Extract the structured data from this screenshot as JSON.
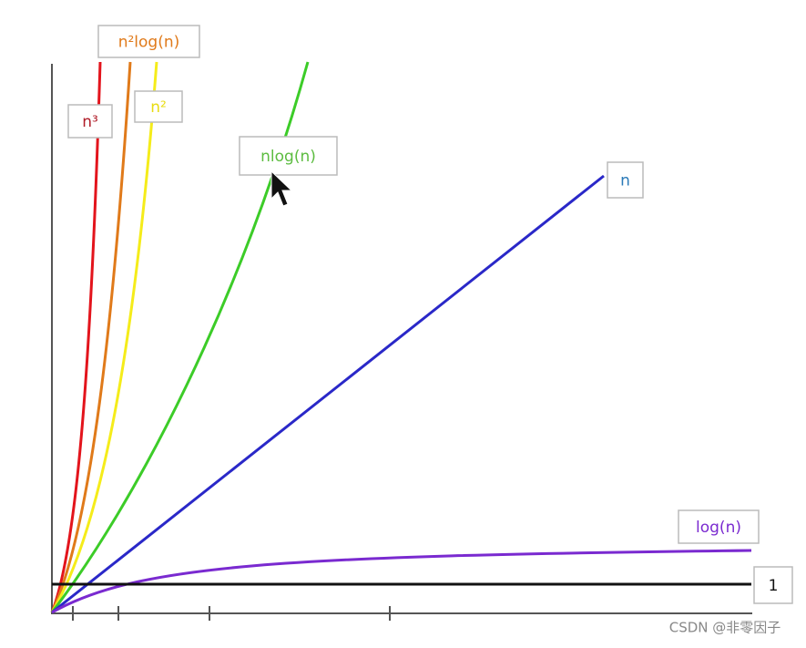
{
  "curves": [
    {
      "label": "n³",
      "color": "#e3141c",
      "label_color": "#b01c28"
    },
    {
      "label": "n²log(n)",
      "color": "#e07a1a",
      "label_color": "#e07a1a"
    },
    {
      "label": "n²",
      "color": "#f5ec1a",
      "label_color": "#e8dc10"
    },
    {
      "label": "nlog(n)",
      "color": "#3ccc28",
      "label_color": "#5cbc40"
    },
    {
      "label": "n",
      "color": "#2a28c8",
      "label_color": "#2a7ab8"
    },
    {
      "label": "log(n)",
      "color": "#7a2ad0",
      "label_color": "#7a2ad0"
    },
    {
      "label": "1",
      "color": "#111111",
      "label_color": "#111111"
    }
  ],
  "watermark": "CSDN @非零因子"
}
